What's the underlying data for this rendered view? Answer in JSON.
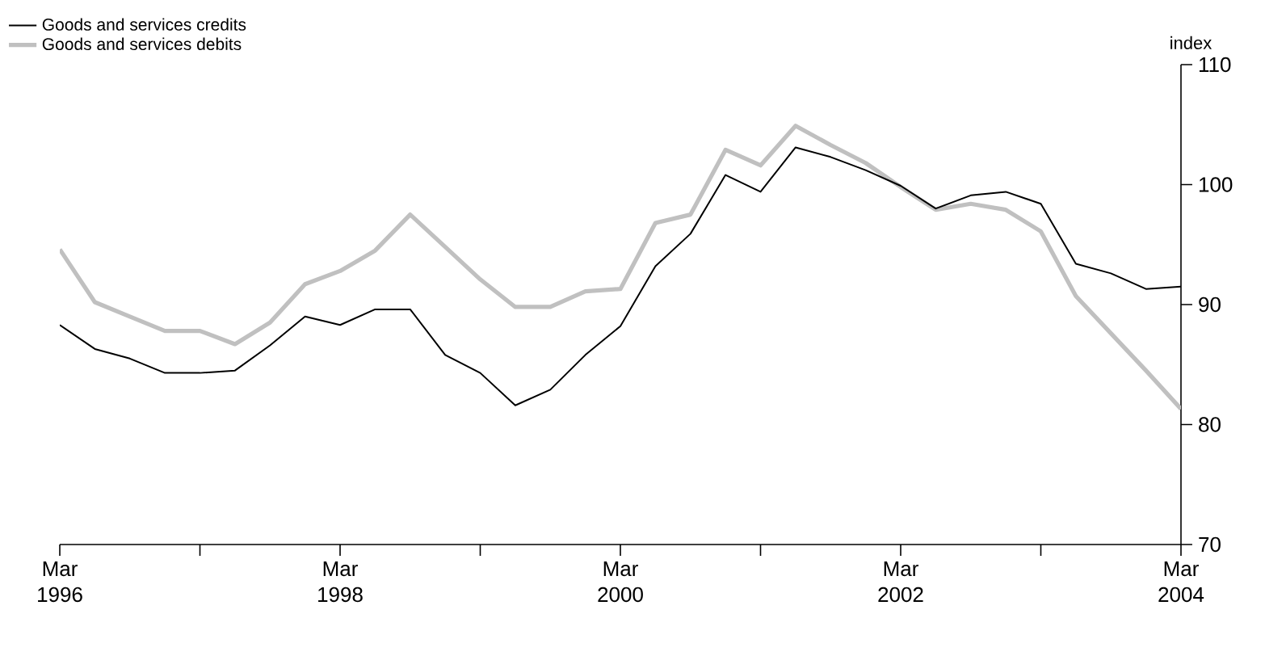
{
  "chart_data": {
    "type": "line",
    "ylabel": "index",
    "x": [
      "1996-03",
      "1996-06",
      "1996-09",
      "1996-12",
      "1997-03",
      "1997-06",
      "1997-09",
      "1997-12",
      "1998-03",
      "1998-06",
      "1998-09",
      "1998-12",
      "1999-03",
      "1999-06",
      "1999-09",
      "1999-12",
      "2000-03",
      "2000-06",
      "2000-09",
      "2000-12",
      "2001-03",
      "2001-06",
      "2001-09",
      "2001-12",
      "2002-03",
      "2002-06",
      "2002-09",
      "2002-12",
      "2003-03",
      "2003-06",
      "2003-09",
      "2003-12",
      "2004-03"
    ],
    "series": [
      {
        "name": "Goods and services credits",
        "color": "#000000",
        "values": [
          88.3,
          86.3,
          85.5,
          84.3,
          84.3,
          84.5,
          86.6,
          89.0,
          88.3,
          89.6,
          89.6,
          85.8,
          84.3,
          81.6,
          82.9,
          85.8,
          88.2,
          93.2,
          95.9,
          100.8,
          99.4,
          103.1,
          102.3,
          101.2,
          99.9,
          98.0,
          99.1,
          99.4,
          98.4,
          93.4,
          92.6,
          91.3,
          91.5
        ]
      },
      {
        "name": "Goods and services debits",
        "color": "#c0c0c0",
        "values": [
          94.6,
          90.2,
          89.0,
          87.8,
          87.8,
          86.7,
          88.5,
          91.7,
          92.8,
          94.5,
          97.5,
          94.8,
          92.1,
          89.8,
          89.8,
          91.1,
          91.3,
          96.8,
          97.5,
          102.9,
          101.6,
          104.9,
          103.3,
          101.8,
          99.8,
          97.9,
          98.4,
          97.9,
          96.1,
          90.7,
          87.6,
          84.5,
          81.3
        ]
      }
    ],
    "xlim": [
      "1996-03",
      "2004-03"
    ],
    "xticks": [
      {
        "value": "1996-03",
        "label": "Mar 1996"
      },
      {
        "value": "1997-03",
        "label": null
      },
      {
        "value": "1998-03",
        "label": "Mar 1998"
      },
      {
        "value": "1999-03",
        "label": null
      },
      {
        "value": "2000-03",
        "label": "Mar 2000"
      },
      {
        "value": "2001-03",
        "label": null
      },
      {
        "value": "2002-03",
        "label": "Mar 2002"
      },
      {
        "value": "2003-03",
        "label": null
      },
      {
        "value": "2004-03",
        "label": "Mar 2004"
      }
    ],
    "ylim": [
      70,
      110
    ],
    "yticks": [
      70,
      80,
      90,
      100,
      110
    ],
    "legend": "top left"
  }
}
